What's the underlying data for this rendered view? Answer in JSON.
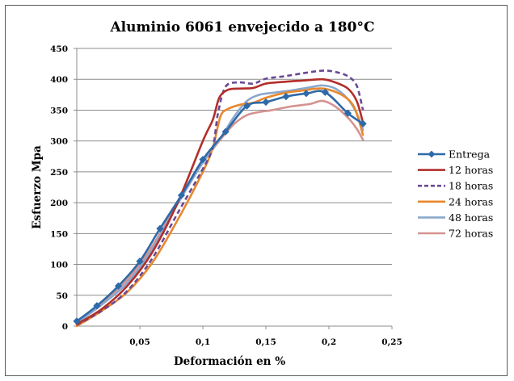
{
  "chart_data": {
    "type": "line",
    "title": "Aluminio 6061 envejecido a 180°C",
    "xlabel": "Deformación en %",
    "ylabel": "Esfuerzo Mpa",
    "xlim": [
      0,
      0.25
    ],
    "ylim": [
      0,
      450
    ],
    "xticks": [
      0.05,
      0.1,
      0.15,
      0.2,
      0.25
    ],
    "xtick_labels": [
      "0,05",
      "0,1",
      "0,15",
      "0,2",
      "0,25"
    ],
    "yticks": [
      0,
      50,
      100,
      150,
      200,
      250,
      300,
      350,
      400,
      450
    ],
    "ytick_labels": [
      "0",
      "50",
      "100",
      "150",
      "200",
      "250",
      "300",
      "350",
      "400",
      "450"
    ],
    "grid": "horizontal",
    "legend_position": "right",
    "series": [
      {
        "name": "Entrega",
        "color": "#2e6aa8",
        "style": "solid",
        "marker": "diamond",
        "x": [
          0.0,
          0.016,
          0.033,
          0.05,
          0.066,
          0.083,
          0.1,
          0.118,
          0.135,
          0.15,
          0.166,
          0.182,
          0.197,
          0.215,
          0.227
        ],
        "y": [
          8,
          33,
          65,
          105,
          158,
          212,
          270,
          315,
          357,
          363,
          372,
          377,
          379,
          345,
          328
        ]
      },
      {
        "name": "12 horas",
        "color": "#b22e2a",
        "style": "solid",
        "x": [
          0.0,
          0.02,
          0.04,
          0.06,
          0.08,
          0.1,
          0.108,
          0.113,
          0.12,
          0.13,
          0.14,
          0.15,
          0.165,
          0.18,
          0.195,
          0.205,
          0.215,
          0.222,
          0.227
        ],
        "y": [
          3,
          28,
          65,
          120,
          200,
          300,
          335,
          370,
          383,
          385,
          386,
          393,
          396,
          398,
          400,
          395,
          385,
          365,
          330
        ]
      },
      {
        "name": "18 horas",
        "color": "#6a4a94",
        "style": "dashed",
        "x": [
          0.0,
          0.02,
          0.04,
          0.06,
          0.08,
          0.1,
          0.108,
          0.112,
          0.118,
          0.128,
          0.14,
          0.15,
          0.165,
          0.18,
          0.195,
          0.205,
          0.215,
          0.222,
          0.227
        ],
        "y": [
          2,
          25,
          57,
          110,
          183,
          255,
          290,
          345,
          388,
          395,
          393,
          401,
          405,
          410,
          414,
          412,
          405,
          390,
          350
        ]
      },
      {
        "name": "24 horas",
        "color": "#e8882e",
        "style": "solid",
        "x": [
          0.0,
          0.02,
          0.04,
          0.06,
          0.08,
          0.1,
          0.108,
          0.114,
          0.12,
          0.13,
          0.14,
          0.15,
          0.165,
          0.18,
          0.195,
          0.21,
          0.22,
          0.227
        ],
        "y": [
          0,
          25,
          55,
          103,
          172,
          250,
          290,
          340,
          352,
          359,
          362,
          370,
          378,
          382,
          385,
          375,
          355,
          310
        ]
      },
      {
        "name": "48 horas",
        "color": "#8aa8cc",
        "style": "solid",
        "x": [
          0.0,
          0.02,
          0.04,
          0.06,
          0.08,
          0.1,
          0.115,
          0.125,
          0.135,
          0.145,
          0.155,
          0.17,
          0.185,
          0.195,
          0.205,
          0.215,
          0.222,
          0.227
        ],
        "y": [
          5,
          35,
          70,
          125,
          198,
          265,
          308,
          340,
          365,
          375,
          378,
          382,
          387,
          390,
          385,
          368,
          345,
          318
        ]
      },
      {
        "name": "72 horas",
        "color": "#d49390",
        "style": "solid",
        "x": [
          0.0,
          0.02,
          0.04,
          0.06,
          0.08,
          0.1,
          0.115,
          0.125,
          0.135,
          0.145,
          0.155,
          0.17,
          0.185,
          0.195,
          0.205,
          0.215,
          0.222,
          0.227
        ],
        "y": [
          6,
          38,
          75,
          130,
          200,
          265,
          305,
          328,
          342,
          347,
          350,
          356,
          360,
          365,
          356,
          338,
          320,
          302
        ]
      }
    ]
  }
}
